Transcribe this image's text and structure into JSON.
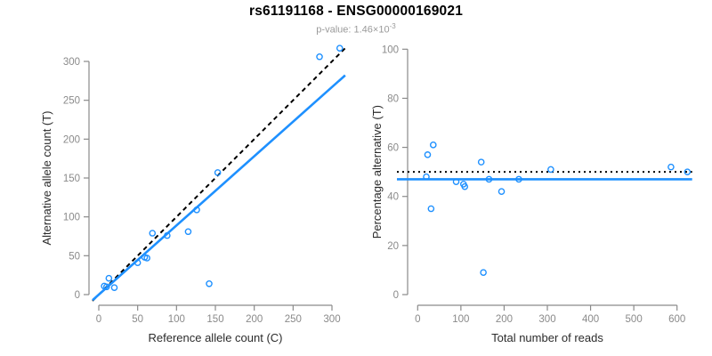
{
  "header": {
    "title": "rs61191168 - ENSG00000169021",
    "subtitle_prefix": "p-value: 1.46×10",
    "subtitle_exponent": "-3"
  },
  "colors": {
    "accent_blue": "#1E90FF",
    "line_black": "#000000",
    "axis_gray": "#8a8a8a",
    "tick_label_gray": "#8a8a8a",
    "axis_title_color": "#2b2b2b",
    "subtitle_gray": "#9a9a9a",
    "background": "#ffffff"
  },
  "chart_data": [
    {
      "id": "allele-count-scatter",
      "type": "scatter",
      "title": "",
      "xlabel": "Reference allele count (C)",
      "ylabel": "Alternative allele count (T)",
      "xlim": [
        0,
        300
      ],
      "ylim": [
        0,
        300
      ],
      "xticks": [
        0,
        50,
        100,
        150,
        200,
        250,
        300
      ],
      "yticks": [
        0,
        50,
        100,
        150,
        200,
        250,
        300
      ],
      "grid": false,
      "legend": null,
      "marker": "open-circle",
      "points": [
        [
          7,
          11
        ],
        [
          10,
          10
        ],
        [
          13,
          21
        ],
        [
          20,
          9
        ],
        [
          50,
          41
        ],
        [
          59,
          48
        ],
        [
          62,
          47
        ],
        [
          69,
          79
        ],
        [
          88,
          76
        ],
        [
          115,
          81
        ],
        [
          126,
          109
        ],
        [
          142,
          14
        ],
        [
          153,
          157
        ],
        [
          284,
          306
        ],
        [
          310,
          317
        ]
      ],
      "lines": [
        {
          "name": "identity-line",
          "style": "dashed",
          "color": "#000000",
          "slope": 1,
          "intercept": 0
        },
        {
          "name": "fit-line",
          "style": "solid",
          "color": "#1E90FF",
          "slope": 0.89,
          "intercept": 0
        }
      ]
    },
    {
      "id": "percentage-alternative-scatter",
      "type": "scatter",
      "title": "",
      "xlabel": "Total number of reads",
      "ylabel": "Percentage alternative (T)",
      "xlim": [
        0,
        600
      ],
      "ylim": [
        0,
        100
      ],
      "xticks": [
        0,
        100,
        200,
        300,
        400,
        500,
        600
      ],
      "yticks": [
        0,
        20,
        40,
        60,
        80,
        100
      ],
      "grid": false,
      "legend": null,
      "marker": "open-circle",
      "points": [
        [
          20,
          48
        ],
        [
          23,
          57
        ],
        [
          31,
          35
        ],
        [
          36,
          61
        ],
        [
          89,
          46
        ],
        [
          106,
          45
        ],
        [
          109,
          44
        ],
        [
          147,
          54
        ],
        [
          152,
          9
        ],
        [
          165,
          47
        ],
        [
          194,
          42
        ],
        [
          234,
          47
        ],
        [
          308,
          51
        ],
        [
          586,
          52
        ],
        [
          624,
          50
        ]
      ],
      "lines": [
        {
          "name": "expected-50pct-line",
          "style": "dotted",
          "color": "#000000",
          "y": 50
        },
        {
          "name": "mean-pct-line",
          "style": "solid",
          "color": "#1E90FF",
          "y": 47
        }
      ]
    }
  ]
}
